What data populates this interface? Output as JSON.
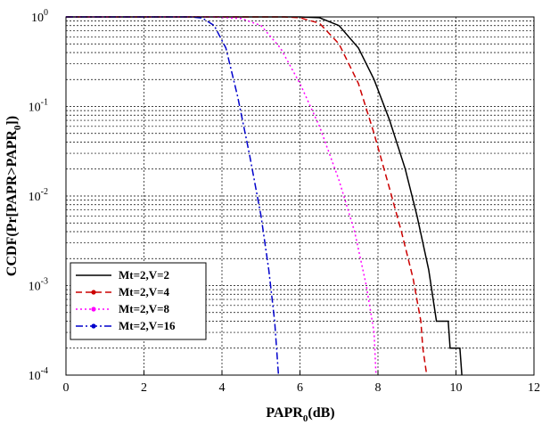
{
  "chart_data": {
    "type": "line",
    "xlabel": "PAPR",
    "xlabel_sub": "0",
    "xlabel_unit": "(dB)",
    "ylabel": "CCDF(Pr[PAPR>PAPR",
    "ylabel_sub": "0",
    "ylabel_end": "])",
    "xlim": [
      0,
      12
    ],
    "ylim": [
      0.0001,
      1
    ],
    "yscale": "log",
    "grid": true,
    "legend_position": "bottom-left",
    "x_ticks": [
      "0",
      "2",
      "4",
      "6",
      "8",
      "10",
      "12"
    ],
    "y_ticks": [
      {
        "value": 1,
        "base": "10",
        "exp": "0"
      },
      {
        "value": 0.1,
        "base": "10",
        "exp": "-1"
      },
      {
        "value": 0.01,
        "base": "10",
        "exp": "-2"
      },
      {
        "value": 0.001,
        "base": "10",
        "exp": "-3"
      },
      {
        "value": 0.0001,
        "base": "10",
        "exp": "-4"
      }
    ],
    "series": [
      {
        "name": "Mt=2,V=2",
        "color": "#000000",
        "style": "solid",
        "marker": "none",
        "points": [
          [
            0,
            1
          ],
          [
            6.0,
            1
          ],
          [
            6.5,
            0.98
          ],
          [
            7.0,
            0.8
          ],
          [
            7.5,
            0.45
          ],
          [
            7.9,
            0.2
          ],
          [
            8.3,
            0.07
          ],
          [
            8.7,
            0.02
          ],
          [
            9.0,
            0.006
          ],
          [
            9.3,
            0.0015
          ],
          [
            9.5,
            0.0004
          ],
          [
            9.8,
            0.0004
          ],
          [
            9.85,
            0.0002
          ],
          [
            10.1,
            0.0002
          ],
          [
            10.15,
            0.0001
          ]
        ]
      },
      {
        "name": "Mt=2,V=4",
        "color": "#cc0000",
        "style": "dashed",
        "marker": "dot",
        "points": [
          [
            0,
            1
          ],
          [
            5.6,
            1
          ],
          [
            6.0,
            0.98
          ],
          [
            6.5,
            0.85
          ],
          [
            7.0,
            0.5
          ],
          [
            7.5,
            0.18
          ],
          [
            7.9,
            0.05
          ],
          [
            8.3,
            0.012
          ],
          [
            8.6,
            0.004
          ],
          [
            8.9,
            0.0012
          ],
          [
            9.1,
            0.0004
          ],
          [
            9.15,
            0.0002
          ],
          [
            9.25,
            0.0001
          ]
        ]
      },
      {
        "name": "Mt=2,V=8",
        "color": "#ff00ff",
        "style": "dotted",
        "marker": "dot",
        "points": [
          [
            0,
            1
          ],
          [
            3.8,
            1
          ],
          [
            4.5,
            0.96
          ],
          [
            5.0,
            0.8
          ],
          [
            5.5,
            0.45
          ],
          [
            6.0,
            0.18
          ],
          [
            6.5,
            0.06
          ],
          [
            7.0,
            0.015
          ],
          [
            7.4,
            0.004
          ],
          [
            7.7,
            0.001
          ],
          [
            7.9,
            0.0003
          ],
          [
            7.95,
            0.0001
          ]
        ]
      },
      {
        "name": "Mt=2,V=16",
        "color": "#0000cc",
        "style": "dashdot",
        "marker": "dot",
        "points": [
          [
            0,
            1
          ],
          [
            3.2,
            1
          ],
          [
            3.5,
            0.97
          ],
          [
            3.8,
            0.8
          ],
          [
            4.1,
            0.45
          ],
          [
            4.4,
            0.13
          ],
          [
            4.7,
            0.03
          ],
          [
            5.0,
            0.006
          ],
          [
            5.2,
            0.0015
          ],
          [
            5.35,
            0.0004
          ],
          [
            5.45,
            0.0001
          ]
        ]
      }
    ]
  }
}
